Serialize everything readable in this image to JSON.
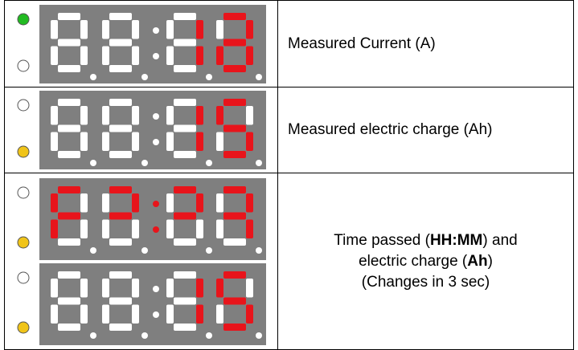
{
  "table": {
    "rows": [
      {
        "description": [
          "Measured Current (A)"
        ]
      },
      {
        "description": [
          "Measured electric charge (Ah)"
        ]
      },
      {
        "description": [
          "Time passed (",
          "HH:MM",
          ") and",
          "electric charge (",
          "Ah",
          ")",
          "(Changes in 3 sec)"
        ]
      }
    ]
  }
}
